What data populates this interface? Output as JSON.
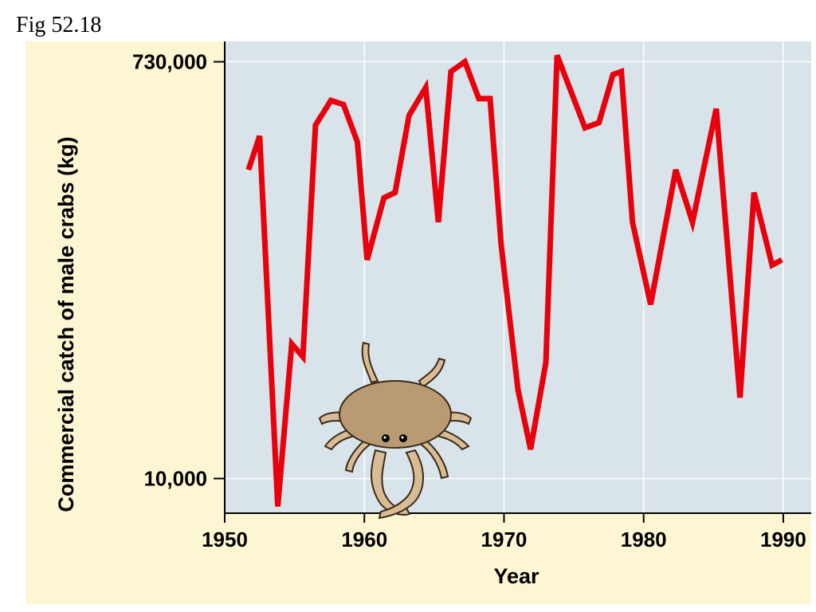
{
  "figure_label": "Fig 52.18",
  "colors": {
    "panel_background": "#fdf6d3",
    "plot_background": "#d8e3ea",
    "gridline": "#ffffff",
    "series_line": "#e8000c",
    "axis": "#000000"
  },
  "chart_data": {
    "type": "line",
    "title": "",
    "xlabel": "Year",
    "ylabel": "Commercial catch of male crabs (kg)",
    "y_scale": "log",
    "xlim": [
      1950,
      1992
    ],
    "ylim": [
      7000,
      900000
    ],
    "x_ticks": [
      1950,
      1960,
      1970,
      1980,
      1990
    ],
    "x_tick_labels": [
      "1950",
      "1960",
      "1970",
      "1980",
      "1990"
    ],
    "y_ticks": [
      10000,
      730000
    ],
    "y_tick_labels": [
      "10,000",
      "730,000"
    ],
    "grid": true,
    "legend": "none",
    "series": [
      {
        "x": [
          1951.7,
          1952.5,
          1953.8,
          1954.8,
          1955.6,
          1956.5,
          1957.6,
          1958.5,
          1959.5,
          1960.2,
          1961.4,
          1962.2,
          1963.2,
          1964.4,
          1965.3,
          1966.2,
          1967.2,
          1968.2,
          1969.0,
          1969.8,
          1971.0,
          1971.9,
          1973.0,
          1973.8,
          1975.8,
          1976.8,
          1977.8,
          1978.4,
          1979.2,
          1980.5,
          1982.3,
          1983.5,
          1985.2,
          1986.9,
          1987.9,
          1989.2,
          1989.9
        ],
        "y": [
          240000,
          340000,
          7500,
          40000,
          35000,
          380000,
          490000,
          470000,
          320000,
          95000,
          180000,
          190000,
          420000,
          560000,
          140000,
          660000,
          730000,
          500000,
          500000,
          110000,
          25000,
          13500,
          33000,
          780000,
          370000,
          390000,
          640000,
          660000,
          140000,
          60000,
          240000,
          140000,
          450000,
          23000,
          190000,
          90000,
          95000
        ]
      }
    ]
  },
  "illustration": "crab"
}
